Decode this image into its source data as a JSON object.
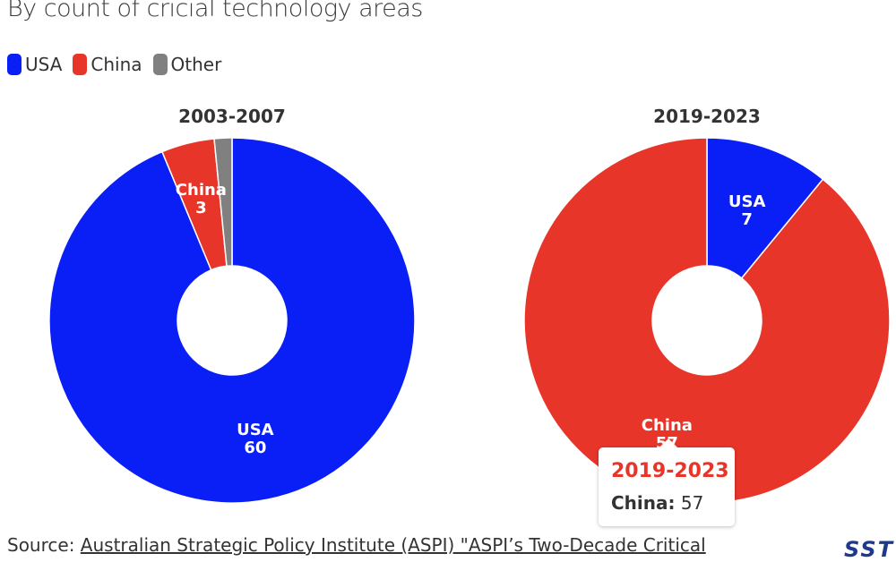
{
  "subtitle": "By count of cricial technology areas",
  "legend": [
    {
      "label": "USA",
      "color": "#0a1ff5"
    },
    {
      "label": "China",
      "color": "#e8352a"
    },
    {
      "label": "Other",
      "color": "#808080"
    }
  ],
  "chart_data": [
    {
      "type": "pie",
      "title": "2003-2007",
      "categories": [
        "USA",
        "China",
        "Other"
      ],
      "values": [
        60,
        3,
        1
      ],
      "colors": [
        "#0a1ff5",
        "#e8352a",
        "#808080"
      ],
      "labels": [
        {
          "name": "USA",
          "value": "60"
        },
        {
          "name": "China",
          "value": "3"
        }
      ]
    },
    {
      "type": "pie",
      "title": "2019-2023",
      "categories": [
        "USA",
        "China",
        "Other"
      ],
      "values": [
        7,
        57,
        0
      ],
      "colors": [
        "#0a1ff5",
        "#e8352a",
        "#808080"
      ],
      "labels": [
        {
          "name": "USA",
          "value": "7"
        },
        {
          "name": "China",
          "value": "57"
        }
      ]
    }
  ],
  "tooltip": {
    "title": "2019-2023",
    "series": "China:",
    "value": "57"
  },
  "source": {
    "prefix": "Source:",
    "link_text": "Australian Strategic Policy Institute (ASPI) \"ASPI’s Two-Decade Critical"
  },
  "logo": "SST"
}
